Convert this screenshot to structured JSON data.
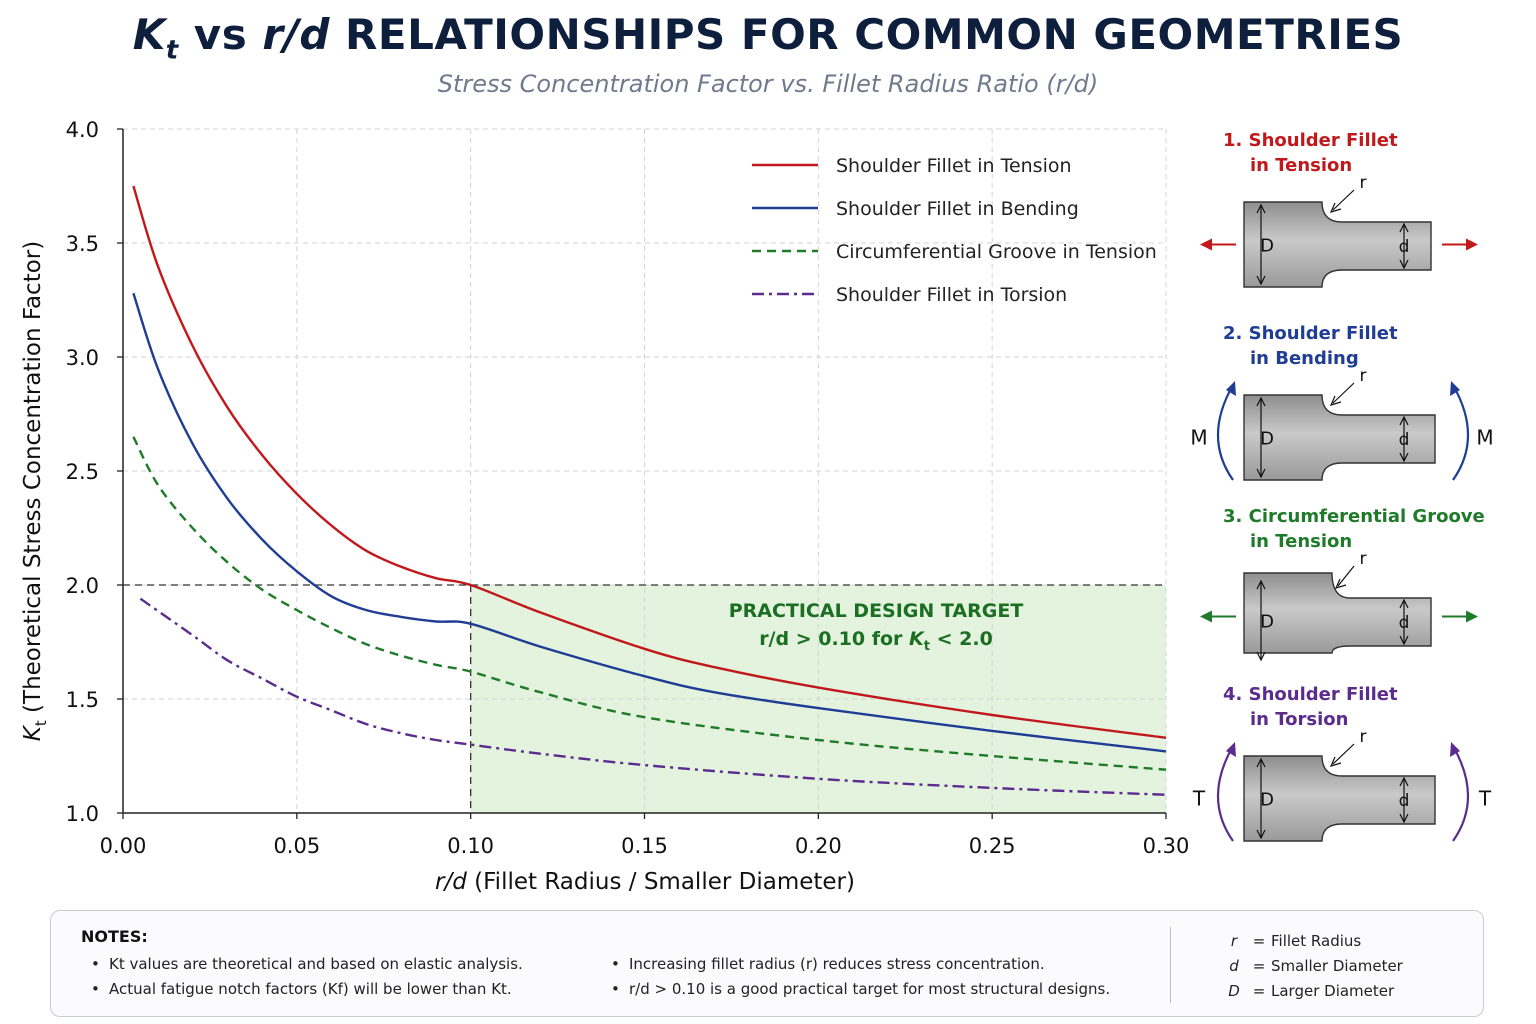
{
  "header": {
    "title_kt": "K",
    "title_kt_sub": "t",
    "title_vs": " vs ",
    "title_rd": "r/d",
    "title_rest": " RELATIONSHIPS FOR COMMON GEOMETRIES",
    "subtitle": "Stress Concentration Factor vs. Fillet Radius Ratio (r/d)"
  },
  "chart_data": {
    "type": "line",
    "xlabel_italic": "r/d",
    "xlabel_rest": "(Fillet Radius / Smaller Diameter)",
    "ylabel_italic": "K",
    "ylabel_sub": "t",
    "ylabel_rest": "(Theoretical Stress Concentration Factor)",
    "xlim": [
      0,
      0.3
    ],
    "ylim": [
      1.0,
      4.0
    ],
    "x_ticks": [
      "0.00",
      "0.05",
      "0.10",
      "0.15",
      "0.20",
      "0.25",
      "0.30"
    ],
    "y_ticks": [
      "1.0",
      "1.5",
      "2.0",
      "2.5",
      "3.0",
      "3.5",
      "4.0"
    ],
    "grid": true,
    "legend_position": "top-right",
    "series": [
      {
        "name": "Shoulder Fillet in Tension",
        "color": "#c0181b",
        "style": "solid",
        "points": [
          [
            0.003,
            3.75
          ],
          [
            0.01,
            3.4
          ],
          [
            0.02,
            3.05
          ],
          [
            0.03,
            2.78
          ],
          [
            0.04,
            2.57
          ],
          [
            0.05,
            2.4
          ],
          [
            0.06,
            2.26
          ],
          [
            0.07,
            2.15
          ],
          [
            0.08,
            2.08
          ],
          [
            0.09,
            2.03
          ],
          [
            0.1,
            2.0
          ],
          [
            0.12,
            1.88
          ],
          [
            0.15,
            1.72
          ],
          [
            0.17,
            1.64
          ],
          [
            0.2,
            1.55
          ],
          [
            0.25,
            1.43
          ],
          [
            0.3,
            1.33
          ]
        ]
      },
      {
        "name": "Shoulder Fillet in Bending",
        "color": "#1f3d94",
        "style": "solid",
        "points": [
          [
            0.003,
            3.28
          ],
          [
            0.01,
            2.95
          ],
          [
            0.02,
            2.62
          ],
          [
            0.03,
            2.38
          ],
          [
            0.04,
            2.2
          ],
          [
            0.05,
            2.06
          ],
          [
            0.06,
            1.95
          ],
          [
            0.07,
            1.89
          ],
          [
            0.08,
            1.86
          ],
          [
            0.09,
            1.84
          ],
          [
            0.1,
            1.83
          ],
          [
            0.12,
            1.73
          ],
          [
            0.15,
            1.6
          ],
          [
            0.17,
            1.53
          ],
          [
            0.2,
            1.46
          ],
          [
            0.25,
            1.36
          ],
          [
            0.3,
            1.27
          ]
        ]
      },
      {
        "name": "Circumferential Groove in Tension",
        "color": "#1f7a2a",
        "style": "dashed",
        "points": [
          [
            0.003,
            2.65
          ],
          [
            0.01,
            2.44
          ],
          [
            0.02,
            2.25
          ],
          [
            0.03,
            2.1
          ],
          [
            0.04,
            1.98
          ],
          [
            0.05,
            1.89
          ],
          [
            0.06,
            1.81
          ],
          [
            0.07,
            1.74
          ],
          [
            0.08,
            1.69
          ],
          [
            0.09,
            1.65
          ],
          [
            0.1,
            1.62
          ],
          [
            0.12,
            1.53
          ],
          [
            0.15,
            1.42
          ],
          [
            0.2,
            1.32
          ],
          [
            0.25,
            1.25
          ],
          [
            0.3,
            1.19
          ]
        ]
      },
      {
        "name": "Shoulder Fillet in Torsion",
        "color": "#5b2c8e",
        "style": "dashdot",
        "points": [
          [
            0.005,
            1.94
          ],
          [
            0.02,
            1.78
          ],
          [
            0.03,
            1.67
          ],
          [
            0.04,
            1.59
          ],
          [
            0.05,
            1.51
          ],
          [
            0.06,
            1.45
          ],
          [
            0.07,
            1.39
          ],
          [
            0.08,
            1.35
          ],
          [
            0.09,
            1.32
          ],
          [
            0.1,
            1.3
          ],
          [
            0.12,
            1.26
          ],
          [
            0.15,
            1.21
          ],
          [
            0.2,
            1.15
          ],
          [
            0.25,
            1.11
          ],
          [
            0.3,
            1.08
          ]
        ]
      }
    ],
    "reference": {
      "x": 0.1,
      "y": 2.0
    },
    "target_region": {
      "x_range": [
        0.1,
        0.3
      ],
      "y_range": [
        1.0,
        2.0
      ],
      "color": "#e3f3dd",
      "label_line1": "PRACTICAL DESIGN TARGET",
      "label_line2_a": "r/d > 0.10  for ",
      "label_line2_k": "K",
      "label_line2_sub": "t",
      "label_line2_b": " < 2.0"
    }
  },
  "diagrams": [
    {
      "title_line1": "1. Shoulder Fillet",
      "title_line2": "in Tension",
      "color": "#c0181b",
      "load": "tension",
      "groove": false,
      "label_r": "r",
      "label_D": "D",
      "label_d": "d"
    },
    {
      "title_line1": "2. Shoulder Fillet",
      "title_line2": "in Bending",
      "color": "#1f3d94",
      "load": "moment",
      "load_label": "M",
      "groove": false,
      "label_r": "r",
      "label_D": "D",
      "label_d": "d"
    },
    {
      "title_line1": "3. Circumferential Groove",
      "title_line2": "in Tension",
      "color": "#1f7a2a",
      "load": "tension",
      "groove": true,
      "label_r": "r",
      "label_D": "D",
      "label_d": "d"
    },
    {
      "title_line1": "4. Shoulder Fillet",
      "title_line2": "in Torsion",
      "color": "#5b2c8e",
      "load": "moment",
      "load_label": "T",
      "groove": false,
      "label_r": "r",
      "label_D": "D",
      "label_d": "d"
    }
  ],
  "notes": {
    "title": "NOTES:",
    "col1": [
      "Kt values are theoretical and based on elastic analysis.",
      "Actual fatigue notch factors (Kf) will be lower than Kt."
    ],
    "col2": [
      "Increasing fillet radius (r) reduces stress concentration.",
      "r/d > 0.10 is a good practical target for most structural designs."
    ],
    "symbols": [
      {
        "sym": "r",
        "eq": "=",
        "desc": "Fillet Radius"
      },
      {
        "sym": "d",
        "eq": "=",
        "desc": "Smaller Diameter"
      },
      {
        "sym": "D",
        "eq": "=",
        "desc": "Larger Diameter"
      }
    ]
  }
}
